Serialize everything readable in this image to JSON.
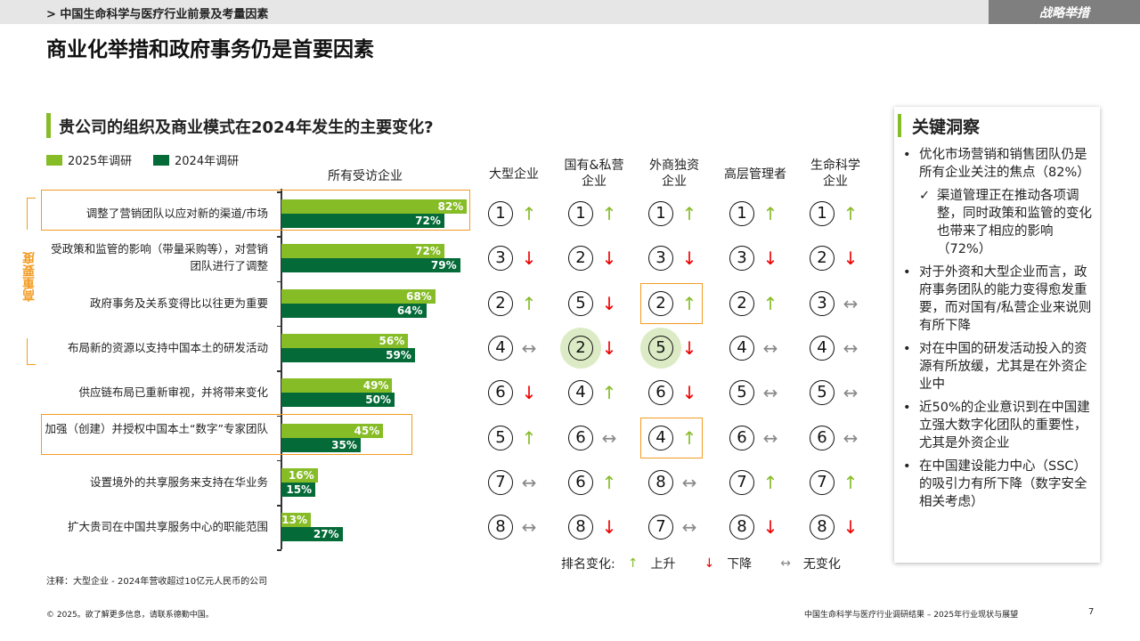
{
  "header": {
    "breadcrumb": "> 中国生命科学与医疗行业前景及考量因素",
    "tag": "战略举措",
    "title": "商业化举措和政府事务仍是首要因素"
  },
  "chart_data": {
    "type": "bar",
    "orientation": "horizontal",
    "title": "贵公司的组织及商业模式在2024年发生的主要变化?",
    "column_title": "所有受访企业",
    "categories": [
      "调整了营销团队以应对新的渠道/市场",
      "受政策和监管的影响（带量采购等），对营销团队进行了调整",
      "政府事务及关系变得比以往更为重要",
      "布局新的资源以支持中国本土的研发活动",
      "供应链布局已重新审视，并将带来变化",
      "加强（创建）并授权中国本土“数字”专家团队",
      "设置境外的共享服务来支持在华业务",
      "扩大贵司在中国共享服务中心的职能范围"
    ],
    "series": [
      {
        "name": "2025年调研",
        "color": "#86bc25",
        "values": [
          82,
          72,
          68,
          56,
          49,
          45,
          16,
          13
        ]
      },
      {
        "name": "2024年调研",
        "color": "#046a38",
        "values": [
          72,
          79,
          64,
          59,
          50,
          35,
          15,
          27
        ]
      }
    ],
    "unit": "%",
    "legend": "top-left",
    "grid": false,
    "highlighted_rows": [
      0,
      5
    ],
    "bracket_label": "高重要度"
  },
  "ranking": {
    "columns": [
      "大型企业",
      "国有&私营\n企业",
      "外商独资\n企业",
      "高层管理者",
      "生命科学\n企业"
    ],
    "ranks": [
      [
        1,
        1,
        1,
        1,
        1
      ],
      [
        3,
        2,
        3,
        3,
        2
      ],
      [
        2,
        5,
        2,
        2,
        3
      ],
      [
        4,
        2,
        5,
        4,
        4
      ],
      [
        6,
        4,
        6,
        5,
        5
      ],
      [
        5,
        6,
        4,
        6,
        6
      ],
      [
        7,
        6,
        8,
        7,
        7
      ],
      [
        8,
        8,
        7,
        8,
        8
      ]
    ],
    "changes": [
      [
        "up",
        "up",
        "up",
        "up",
        "up"
      ],
      [
        "down",
        "down",
        "down",
        "down",
        "down"
      ],
      [
        "up",
        "down",
        "up",
        "up",
        "same"
      ],
      [
        "same",
        "down",
        "down",
        "same",
        "same"
      ],
      [
        "down",
        "up",
        "down",
        "same",
        "same"
      ],
      [
        "up",
        "same",
        "up",
        "same",
        "same"
      ],
      [
        "same",
        "up",
        "same",
        "up",
        "up"
      ],
      [
        "same",
        "down",
        "same",
        "down",
        "down"
      ]
    ],
    "boxed_cells": [
      [
        2,
        2
      ],
      [
        5,
        2
      ]
    ],
    "circled_cells": [
      [
        3,
        1
      ],
      [
        3,
        2
      ]
    ],
    "legend": {
      "label": "排名变化:",
      "up": "上升",
      "down": "下降",
      "same": "无变化"
    },
    "icons": {
      "up": "↑",
      "down": "↓",
      "same": "↔"
    }
  },
  "insights": {
    "title": "关键洞察",
    "items": [
      {
        "text": "优化市场营销和销售团队仍是所有企业关注的焦点（82%）",
        "sub": false
      },
      {
        "text": "渠道管理正在推动各项调整，同时政策和监管的变化也带来了相应的影响（72%）",
        "sub": true
      },
      {
        "text": "对于外资和大型企业而言，政府事务团队的能力变得愈发重要，而对国有/私营企业来说则有所下降",
        "sub": false
      },
      {
        "text": "对在中国的研发活动投入的资源有所放缓，尤其是在外资企业中",
        "sub": false
      },
      {
        "text": "近50%的企业意识到在中国建立强大数字化团队的重要性，尤其是外资企业",
        "sub": false
      },
      {
        "text": "在中国建设能力中心（SSC）的吸引力有所下降（数字安全相关考虑）",
        "sub": false
      }
    ]
  },
  "footer": {
    "note": "注释：大型企业 - 2024年营收超过10亿元人民币的公司",
    "copyright": "© 2025。欲了解更多信息，请联系德勤中国。",
    "report": "中国生命科学与医疗行业调研结果 – 2025年行业现状与展望",
    "page": "7"
  }
}
